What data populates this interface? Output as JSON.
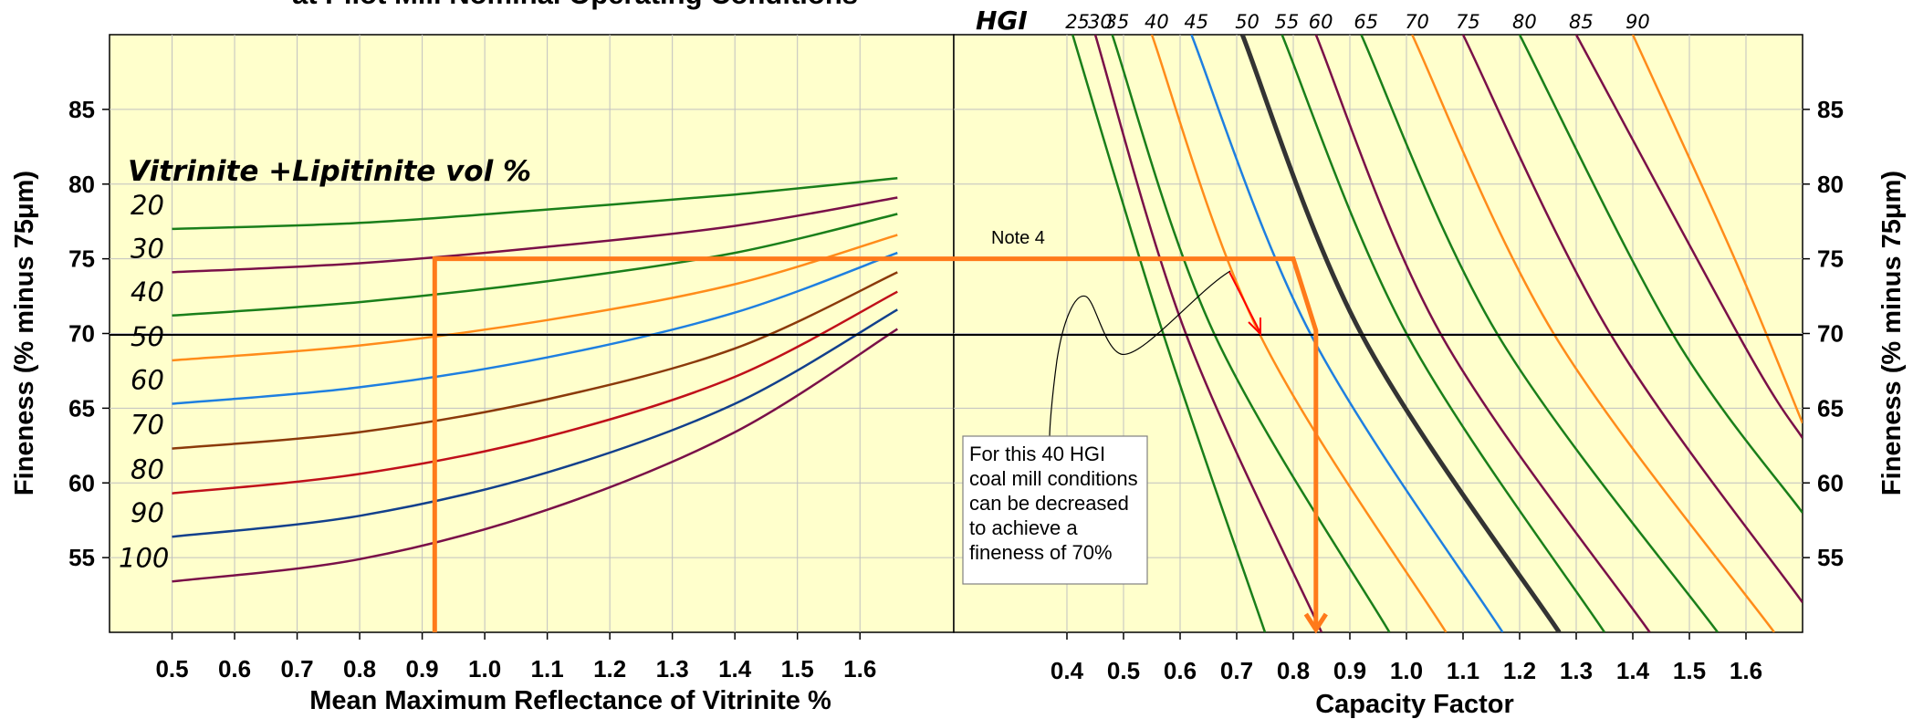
{
  "chart_data": [
    {
      "type": "line",
      "title": "at Pilot Mill Nominal Operating Conditions",
      "xlabel": "Mean Maximum Reflectance of Vitrinite %",
      "ylabel": "Fineness (% minus 75μm)",
      "xlim": [
        0.4,
        1.75
      ],
      "ylim": [
        50,
        90
      ],
      "xticks": [
        "0.5",
        "0.6",
        "0.7",
        "0.8",
        "0.9",
        "1.0",
        "1.1",
        "1.2",
        "1.3",
        "1.4",
        "1.5",
        "1.6"
      ],
      "yticks": [
        "55",
        "60",
        "65",
        "70",
        "75",
        "80",
        "85"
      ],
      "grid": true,
      "legend_title": "Vitrinite +Lipitinite vol %",
      "series": [
        {
          "name": "20",
          "color": "#1a7f1a",
          "x": [
            0.5,
            0.8,
            1.1,
            1.4,
            1.66
          ],
          "y": [
            77.0,
            77.4,
            78.3,
            79.3,
            80.4
          ]
        },
        {
          "name": "30",
          "color": "#7a1048",
          "x": [
            0.5,
            0.8,
            1.1,
            1.4,
            1.66
          ],
          "y": [
            74.1,
            74.7,
            75.8,
            77.2,
            79.1
          ]
        },
        {
          "name": "40",
          "color": "#1a7f1a",
          "x": [
            0.5,
            0.8,
            1.1,
            1.4,
            1.66
          ],
          "y": [
            71.2,
            72.1,
            73.5,
            75.4,
            78.0
          ]
        },
        {
          "name": "50",
          "color": "#ff8c1a",
          "x": [
            0.5,
            0.8,
            1.1,
            1.4,
            1.66
          ],
          "y": [
            68.2,
            69.2,
            70.9,
            73.3,
            76.6
          ]
        },
        {
          "name": "60",
          "color": "#1e7fe0",
          "x": [
            0.5,
            0.8,
            1.1,
            1.4,
            1.66
          ],
          "y": [
            65.3,
            66.4,
            68.4,
            71.4,
            75.4
          ]
        },
        {
          "name": "70",
          "color": "#8b3a0a",
          "x": [
            0.5,
            0.8,
            1.1,
            1.4,
            1.66
          ],
          "y": [
            62.3,
            63.4,
            65.6,
            69.0,
            74.1
          ]
        },
        {
          "name": "80",
          "color": "#c0101a",
          "x": [
            0.5,
            0.8,
            1.1,
            1.4,
            1.66
          ],
          "y": [
            59.3,
            60.6,
            63.1,
            67.1,
            72.8
          ]
        },
        {
          "name": "90",
          "color": "#12408c",
          "x": [
            0.5,
            0.8,
            1.1,
            1.4,
            1.66
          ],
          "y": [
            56.4,
            57.8,
            60.7,
            65.3,
            71.6
          ]
        },
        {
          "name": "100",
          "color": "#7a1048",
          "x": [
            0.5,
            0.8,
            1.1,
            1.4,
            1.66
          ],
          "y": [
            53.4,
            54.9,
            58.2,
            63.4,
            70.3
          ]
        }
      ]
    },
    {
      "type": "line",
      "xlabel": "Capacity Factor",
      "ylabel": "Fineness (% minus 75μm)",
      "xlim": [
        0.2,
        1.7
      ],
      "ylim": [
        50,
        90
      ],
      "xticks": [
        "0.4",
        "0.5",
        "0.6",
        "0.7",
        "0.8",
        "0.9",
        "1.0",
        "1.1",
        "1.2",
        "1.3",
        "1.4",
        "1.5",
        "1.6"
      ],
      "yticks": [
        "55",
        "60",
        "65",
        "70",
        "75",
        "80",
        "85"
      ],
      "grid": true,
      "legend_title": "HGI",
      "series": [
        {
          "name": "25",
          "color": "#1a7f1a",
          "x": [
            0.41,
            0.57,
            0.75
          ],
          "y": [
            90,
            70,
            50
          ]
        },
        {
          "name": "30",
          "color": "#7a1048",
          "x": [
            0.45,
            0.61,
            0.85
          ],
          "y": [
            90,
            70,
            50
          ]
        },
        {
          "name": "35",
          "color": "#1a7f1a",
          "x": [
            0.48,
            0.66,
            0.97
          ],
          "y": [
            90,
            70,
            50
          ]
        },
        {
          "name": "40",
          "color": "#ff8c1a",
          "x": [
            0.55,
            0.74,
            1.07
          ],
          "y": [
            90,
            70,
            50
          ]
        },
        {
          "name": "45",
          "color": "#1e7fe0",
          "x": [
            0.62,
            0.83,
            1.17
          ],
          "y": [
            90,
            70,
            50
          ]
        },
        {
          "name": "50",
          "color": "#333333",
          "x": [
            0.71,
            0.92,
            1.27
          ],
          "y": [
            90,
            70,
            50
          ]
        },
        {
          "name": "55",
          "color": "#1a7f1a",
          "x": [
            0.78,
            1.0,
            1.35
          ],
          "y": [
            90,
            70,
            50
          ]
        },
        {
          "name": "60",
          "color": "#7a1048",
          "x": [
            0.84,
            1.06,
            1.43
          ],
          "y": [
            90,
            70,
            50
          ]
        },
        {
          "name": "65",
          "color": "#1a7f1a",
          "x": [
            0.92,
            1.16,
            1.55
          ],
          "y": [
            90,
            70,
            50
          ]
        },
        {
          "name": "70",
          "color": "#ff8c1a",
          "x": [
            1.01,
            1.26,
            1.65
          ],
          "y": [
            90,
            70,
            50
          ]
        },
        {
          "name": "75",
          "color": "#7a1048",
          "x": [
            1.1,
            1.36,
            1.7
          ],
          "y": [
            90,
            70,
            52
          ]
        },
        {
          "name": "80",
          "color": "#1a7f1a",
          "x": [
            1.2,
            1.47,
            1.7
          ],
          "y": [
            90,
            70,
            58
          ]
        },
        {
          "name": "85",
          "color": "#7a1048",
          "x": [
            1.3,
            1.6,
            1.7
          ],
          "y": [
            90,
            69,
            63
          ]
        },
        {
          "name": "90",
          "color": "#ff8c1a",
          "x": [
            1.4,
            1.58,
            1.7
          ],
          "y": [
            90,
            75,
            64
          ]
        }
      ]
    }
  ],
  "hgi_labels": [
    "25",
    "30",
    "35",
    "40",
    "45",
    "50",
    "55",
    "60",
    "65",
    "70",
    "75",
    "80",
    "85",
    "90"
  ],
  "hgi_title": "HGI",
  "vl_title": "Vitrinite +Lipitinite vol %",
  "vl_labels": [
    "20",
    "30",
    "40",
    "50",
    "60",
    "70",
    "80",
    "90",
    "100"
  ],
  "annotation": {
    "note": "Note 4",
    "box_lines": [
      "For this 40 HGI",
      "coal mill conditions",
      "can be decreased",
      "to achieve a",
      "fineness of 70%"
    ]
  },
  "example_path": {
    "reflectance": 0.92,
    "fineness_start": 75,
    "capacity_at_75": 0.8,
    "fineness_end": 70.2,
    "capacity_at_70": 0.84
  },
  "colors": {
    "plot_bg": "#ffffcc",
    "gridline": "#c0c0c0",
    "reference_line": "#000000",
    "example_path": "#ff7a1a",
    "note_arrow": "#ff0000"
  }
}
